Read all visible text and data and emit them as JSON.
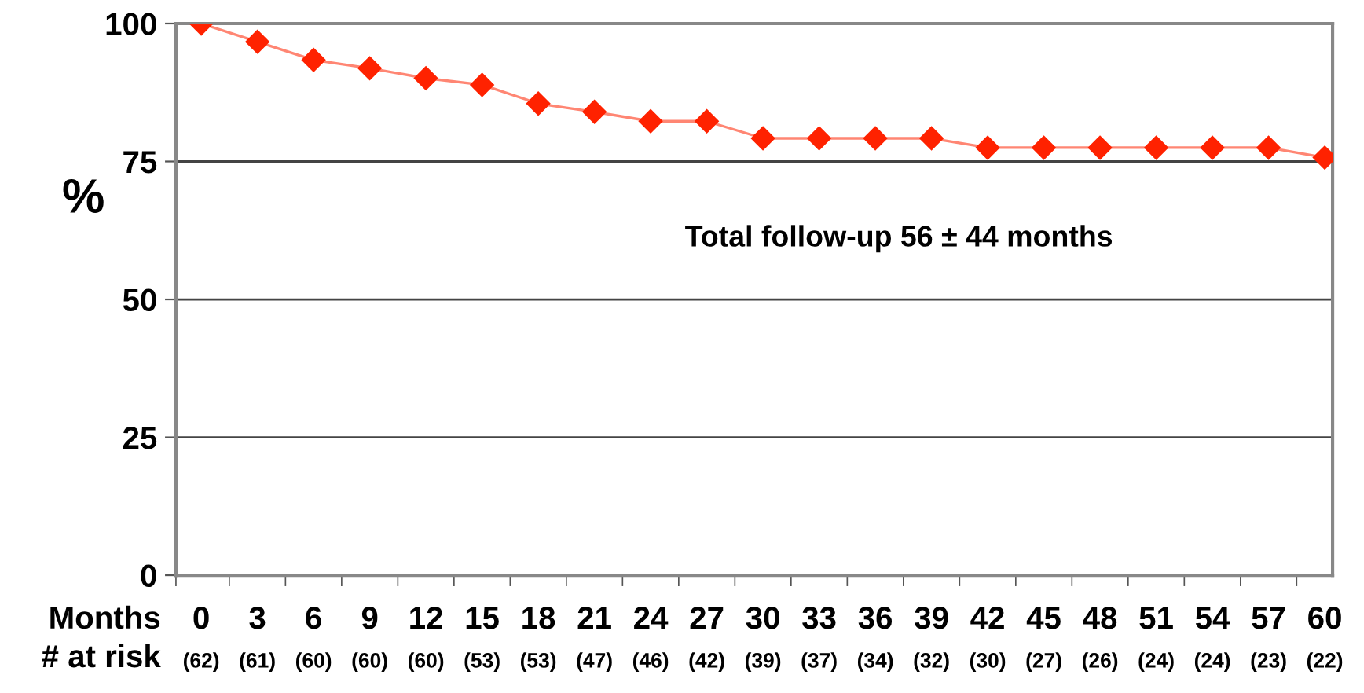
{
  "chart_data": {
    "type": "line",
    "xlabel": "Months",
    "ylabel": "%",
    "categories": [
      "0",
      "3",
      "6",
      "9",
      "12",
      "15",
      "18",
      "21",
      "24",
      "27",
      "30",
      "33",
      "36",
      "39",
      "42",
      "45",
      "48",
      "51",
      "54",
      "57",
      "60"
    ],
    "series": [
      {
        "color": "#ff2200",
        "values": [
          100,
          96.7,
          93.4,
          91.9,
          90.1,
          88.9,
          85.5,
          84.0,
          82.3,
          82.3,
          79.2,
          79.2,
          79.2,
          79.2,
          77.5,
          77.5,
          77.5,
          77.5,
          77.5,
          77.5,
          75.7
        ]
      }
    ],
    "ylim": [
      0,
      100
    ],
    "yticks": [
      0,
      25,
      50,
      75,
      100
    ],
    "grid": "y",
    "marker": "diamond",
    "line_style": "solid",
    "annotations": [
      "Total follow-up 56 ± 44 months",
      "# at risk",
      "(62)",
      "(61)",
      "(60)",
      "(60)",
      "(60)",
      "(53)",
      "(53)",
      "(47)",
      "(46)",
      "(42)",
      "(39)",
      "(37)",
      "(34)",
      "(32)",
      "(30)",
      "(27)",
      "(26)",
      "(24)",
      "(24)",
      "(23)",
      "(22)"
    ]
  }
}
